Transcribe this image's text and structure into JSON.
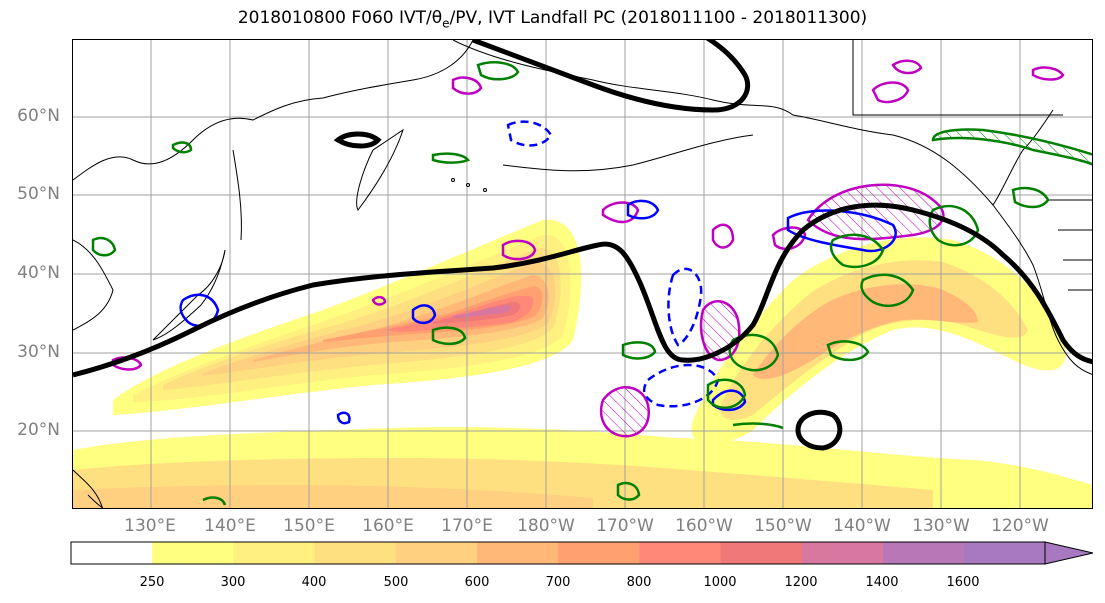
{
  "title": {
    "prefix": "2018010800 F060 IVT/",
    "theta": "θ",
    "theta_sub": "e",
    "suffix": "/PV, IVT Landfall PC (2018011100 - 2018011300)"
  },
  "lat_labels": [
    "60°N",
    "50°N",
    "40°N",
    "30°N",
    "20°N"
  ],
  "lon_labels": [
    "130°E",
    "140°E",
    "150°E",
    "160°E",
    "170°E",
    "180°W",
    "170°W",
    "160°W",
    "150°W",
    "140°W",
    "130°W",
    "120°W"
  ],
  "colorbar": {
    "ticks": [
      "250",
      "300",
      "400",
      "500",
      "600",
      "700",
      "800",
      "1000",
      "1200",
      "1400",
      "1600"
    ],
    "colors": [
      "#ffffff",
      "#ffff80",
      "#fff080",
      "#ffe080",
      "#ffd080",
      "#ffb878",
      "#ffa070",
      "#ff8878",
      "#f07878",
      "#d878a0",
      "#b878b8",
      "#a878c0"
    ]
  },
  "colors": {
    "theta_contour": "#000000",
    "pv_positive": "#008000",
    "pv_negative": "#0000ff",
    "landfall": "#c000c0",
    "grid": "#a0a0a0",
    "coast": "#000000"
  }
}
